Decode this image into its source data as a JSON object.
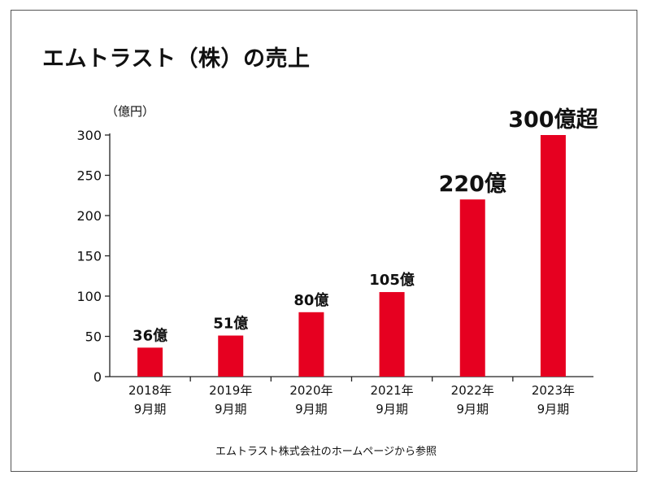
{
  "chart_data": {
    "type": "bar",
    "title": "エムトラスト（株）の売上",
    "ylabel": "（億円）",
    "xlabel": "",
    "ylim": [
      0,
      300
    ],
    "yticks": [
      0,
      50,
      100,
      150,
      200,
      250,
      300
    ],
    "grid": false,
    "legend": "none",
    "categories": [
      [
        "2018年",
        "9月期"
      ],
      [
        "2019年",
        "9月期"
      ],
      [
        "2020年",
        "9月期"
      ],
      [
        "2021年",
        "9月期"
      ],
      [
        "2022年",
        "9月期"
      ],
      [
        "2023年",
        "9月期"
      ]
    ],
    "values": [
      36,
      51,
      80,
      105,
      220,
      300
    ],
    "data_labels": [
      "36億",
      "51億",
      "80億",
      "105億",
      "220億",
      "300億超"
    ],
    "bar_color": "#e60020"
  },
  "source": "エムトラスト株式会社のホームページから参照"
}
